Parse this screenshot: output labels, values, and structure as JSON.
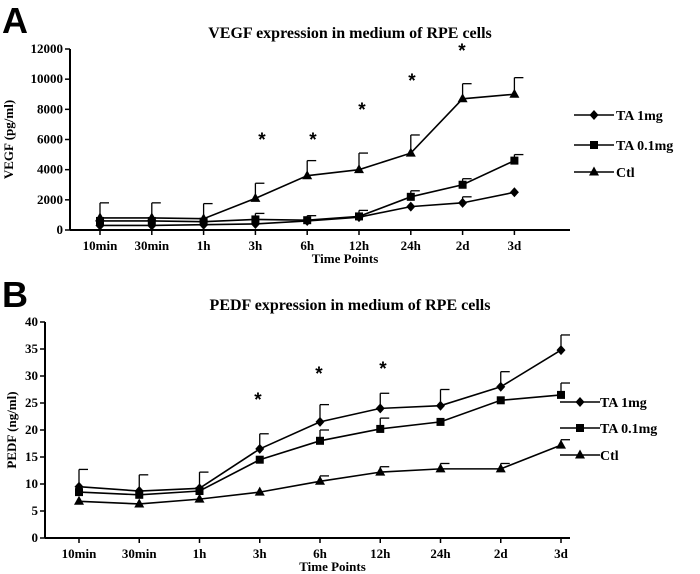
{
  "chart_data": [
    {
      "panel": "A",
      "type": "line",
      "title": "VEGF expression in medium of RPE cells",
      "xlabel": "Time Points",
      "ylabel": "VEGF (pg/ml)",
      "categories": [
        "10min",
        "30min",
        "1h",
        "3h",
        "6h",
        "12h",
        "24h",
        "2d",
        "3d"
      ],
      "ylim": [
        0,
        12000
      ],
      "yticks": [
        0,
        2000,
        4000,
        6000,
        8000,
        10000,
        12000
      ],
      "legend_position": "right",
      "series": [
        {
          "name": "TA 1mg",
          "marker": "diamond",
          "values": [
            300,
            300,
            350,
            400,
            600,
            850,
            1550,
            1800,
            2500
          ],
          "errors": [
            0,
            0,
            0,
            0,
            0,
            0,
            0,
            400,
            0
          ]
        },
        {
          "name": "TA 0.1mg",
          "marker": "square",
          "values": [
            600,
            600,
            550,
            700,
            650,
            900,
            2200,
            3000,
            4600
          ],
          "errors": [
            0,
            0,
            0,
            400,
            300,
            400,
            400,
            400,
            400
          ]
        },
        {
          "name": "Ctl",
          "marker": "triangle",
          "values": [
            800,
            800,
            750,
            2100,
            3600,
            4000,
            5100,
            8700,
            9000
          ],
          "errors": [
            1000,
            1000,
            1000,
            1000,
            1000,
            1100,
            1200,
            1000,
            1100
          ]
        }
      ],
      "significance": [
        {
          "category": "3h",
          "label": "*"
        },
        {
          "category": "6h",
          "label": "*"
        },
        {
          "category": "12h",
          "label": "*"
        },
        {
          "category": "24h",
          "label": "*"
        },
        {
          "category": "2d",
          "label": "*"
        }
      ]
    },
    {
      "panel": "B",
      "type": "line",
      "title": "PEDF expression in medium of RPE cells",
      "xlabel": "Time Points",
      "ylabel": "PEDF (ng/ml)",
      "categories": [
        "10min",
        "30min",
        "1h",
        "3h",
        "6h",
        "12h",
        "24h",
        "2d",
        "3d"
      ],
      "ylim": [
        0,
        40
      ],
      "yticks": [
        0,
        5,
        10,
        15,
        20,
        25,
        30,
        35,
        40
      ],
      "legend_position": "right",
      "series": [
        {
          "name": "TA 1mg",
          "marker": "diamond",
          "values": [
            9.5,
            8.7,
            9.2,
            16.5,
            21.5,
            24.0,
            24.5,
            28.0,
            34.8
          ],
          "errors": [
            3.2,
            3.0,
            3.0,
            2.8,
            3.2,
            2.8,
            3.0,
            2.8,
            2.8
          ]
        },
        {
          "name": "TA 0.1mg",
          "marker": "square",
          "values": [
            8.5,
            8.0,
            8.7,
            14.5,
            18.0,
            20.2,
            21.5,
            25.5,
            26.5
          ],
          "errors": [
            0,
            0,
            0,
            0,
            2.0,
            2.0,
            0,
            0,
            2.2
          ]
        },
        {
          "name": "Ctl",
          "marker": "triangle",
          "values": [
            6.8,
            6.3,
            7.2,
            8.5,
            10.5,
            12.2,
            12.8,
            12.8,
            17.2
          ],
          "errors": [
            0,
            0,
            0,
            0,
            1.0,
            1.0,
            1.0,
            1.0,
            1.0
          ]
        }
      ],
      "significance": [
        {
          "category": "3h",
          "label": "*"
        },
        {
          "category": "6h",
          "label": "*"
        },
        {
          "category": "12h",
          "label": "*"
        }
      ]
    }
  ]
}
